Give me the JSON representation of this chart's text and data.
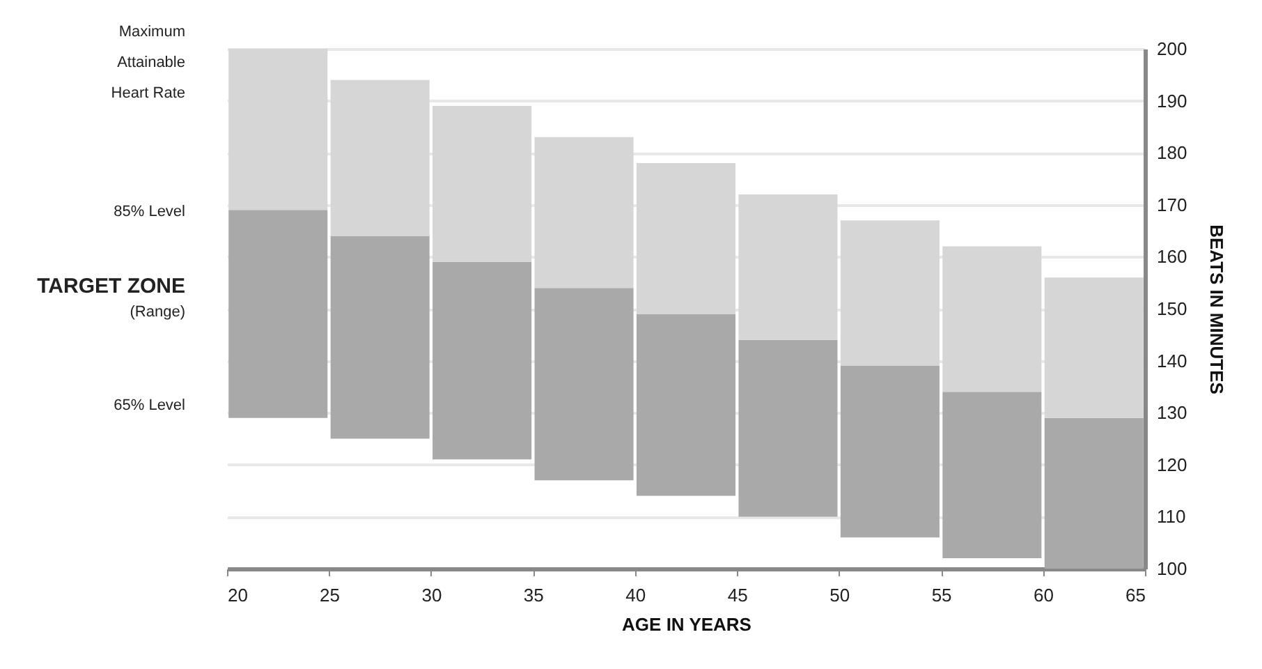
{
  "chart_data": {
    "type": "bar",
    "xlabel": "AGE IN YEARS",
    "ylabel": "BEATS IN MINUTES",
    "x": [
      22.5,
      27.5,
      32.5,
      37.5,
      42.5,
      47.5,
      52.5,
      57.5,
      62.5
    ],
    "series": [
      {
        "color": "#a9a9a9",
        "base": [
          129,
          125,
          121,
          117,
          114,
          110,
          106,
          102,
          100
        ],
        "values": [
          40,
          39,
          38,
          37,
          35,
          34,
          33,
          32,
          29
        ]
      },
      {
        "color": "#d6d6d6",
        "base": [
          169,
          164,
          159,
          154,
          149,
          144,
          139,
          134,
          129
        ],
        "values": [
          31,
          30,
          30,
          29,
          29,
          28,
          28,
          28,
          27
        ]
      }
    ],
    "xlim": [
      20,
      65
    ],
    "xticks": [
      20,
      25,
      30,
      35,
      40,
      45,
      50,
      55,
      60,
      65
    ],
    "ylim": [
      100,
      200
    ],
    "yticks": [
      100,
      110,
      120,
      130,
      140,
      150,
      160,
      170,
      180,
      190,
      200
    ],
    "grid": "y",
    "annotations": [
      "Maximum Attainable Heart Rate",
      "85% Level",
      "TARGET ZONE",
      "(Range)",
      "65% Level"
    ]
  }
}
